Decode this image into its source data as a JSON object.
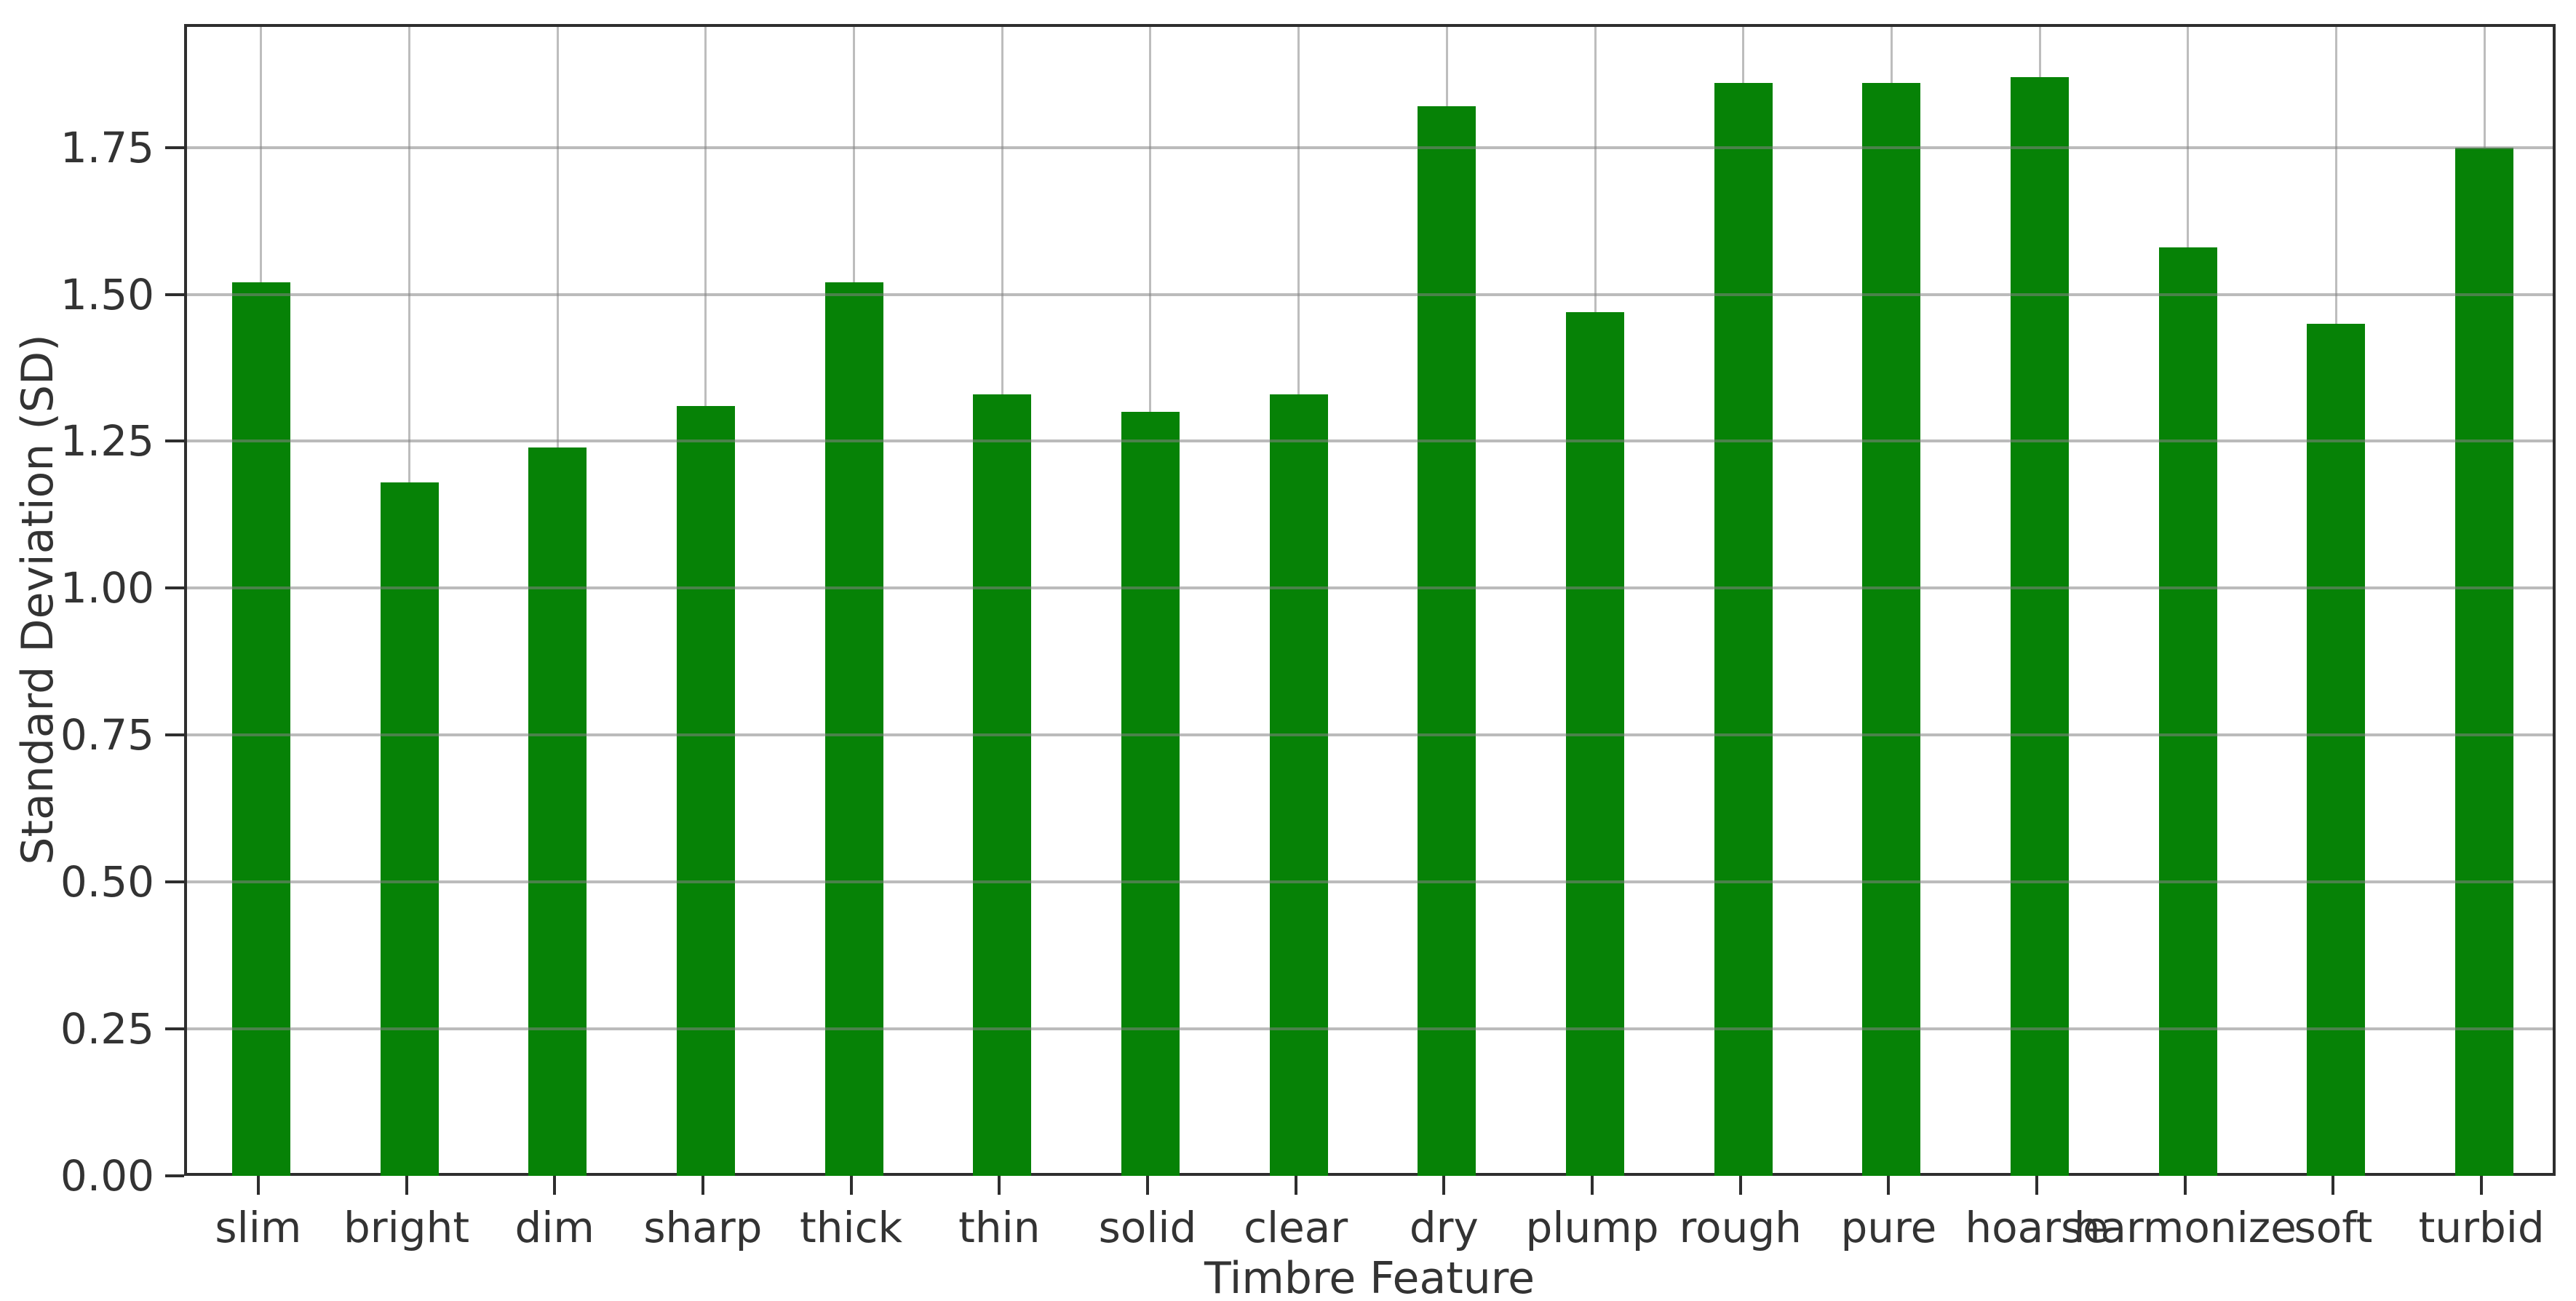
{
  "chart_data": {
    "type": "bar",
    "title": "",
    "xlabel": "Timbre Feature",
    "ylabel": "Standard Deviation (SD)",
    "categories": [
      "slim",
      "bright",
      "dim",
      "sharp",
      "thick",
      "thin",
      "solid",
      "clear",
      "dry",
      "plump",
      "rough",
      "pure",
      "hoarse",
      "harmonize",
      "soft",
      "turbid"
    ],
    "values": [
      1.52,
      1.18,
      1.24,
      1.31,
      1.52,
      1.33,
      1.3,
      1.33,
      1.82,
      1.47,
      1.86,
      1.86,
      1.87,
      1.58,
      1.45,
      1.75
    ],
    "ylim": [
      0,
      1.96
    ],
    "yticks": [
      0.0,
      0.25,
      0.5,
      0.75,
      1.0,
      1.25,
      1.5,
      1.75
    ],
    "grid": true,
    "legend_position": "none",
    "bar_color": "#068206",
    "grid_color": "#bdbdbd",
    "spine_color": "#2e2e2e",
    "text_color": "#333333"
  }
}
